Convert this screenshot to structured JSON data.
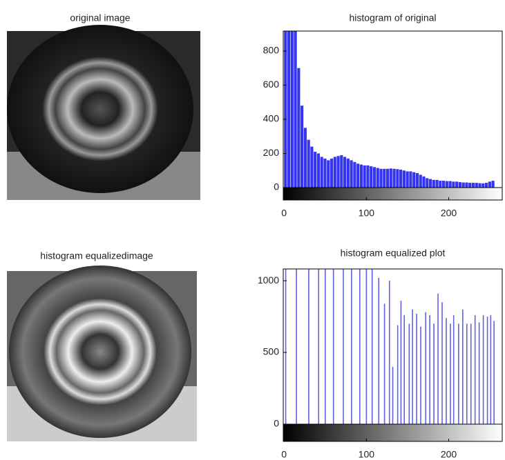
{
  "images": [
    {
      "title": "original image"
    },
    {
      "title": "histogram equalizedimage"
    }
  ],
  "chart_data": [
    {
      "type": "histogram",
      "title": "histogram of original",
      "color": "#3535f0",
      "bins": [
        0,
        4,
        8,
        12,
        16,
        20,
        24,
        28,
        32,
        36,
        40,
        44,
        48,
        52,
        56,
        60,
        64,
        68,
        72,
        76,
        80,
        84,
        88,
        92,
        96,
        100,
        104,
        108,
        112,
        116,
        120,
        124,
        128,
        132,
        136,
        140,
        144,
        148,
        152,
        156,
        160,
        164,
        168,
        172,
        176,
        180,
        184,
        188,
        192,
        196,
        200,
        204,
        208,
        212,
        216,
        220,
        224,
        228,
        232,
        236,
        240,
        244,
        248,
        252,
        256
      ],
      "values": [
        917,
        917,
        917,
        917,
        700,
        480,
        350,
        280,
        240,
        210,
        200,
        180,
        170,
        160,
        170,
        180,
        185,
        190,
        180,
        170,
        160,
        150,
        140,
        135,
        130,
        130,
        125,
        120,
        115,
        110,
        110,
        110,
        112,
        110,
        108,
        105,
        100,
        95,
        95,
        90,
        85,
        75,
        65,
        55,
        50,
        45,
        45,
        40,
        40,
        38,
        38,
        35,
        35,
        32,
        30,
        30,
        28,
        28,
        28,
        26,
        25,
        28,
        35,
        40
      ],
      "xlim": [
        -1,
        265
      ],
      "ylim": [
        0,
        917
      ],
      "xticks": [
        0,
        100,
        200
      ],
      "yticks": [
        0,
        200,
        400,
        600,
        800
      ]
    },
    {
      "type": "stem",
      "title": "histogram equalized plot",
      "color": "#6060e8",
      "x": [
        2,
        15,
        30,
        42,
        50,
        60,
        72,
        82,
        92,
        100,
        107,
        115,
        122,
        128,
        132,
        138,
        142,
        146,
        152,
        156,
        161,
        166,
        172,
        177,
        182,
        187,
        192,
        197,
        202,
        206,
        212,
        217,
        222,
        227,
        232,
        237,
        242,
        247,
        251,
        255
      ],
      "values": [
        1082,
        1082,
        1082,
        1082,
        1082,
        1082,
        1082,
        1082,
        1082,
        1082,
        1082,
        1020,
        840,
        1000,
        400,
        690,
        860,
        760,
        700,
        800,
        770,
        680,
        780,
        760,
        700,
        910,
        850,
        740,
        700,
        760,
        700,
        800,
        700,
        700,
        760,
        710,
        760,
        750,
        760,
        720
      ],
      "xlim": [
        -1,
        265
      ],
      "ylim": [
        0,
        1082
      ],
      "xticks": [
        0,
        100,
        200
      ],
      "yticks": [
        0,
        500,
        1000
      ]
    }
  ]
}
